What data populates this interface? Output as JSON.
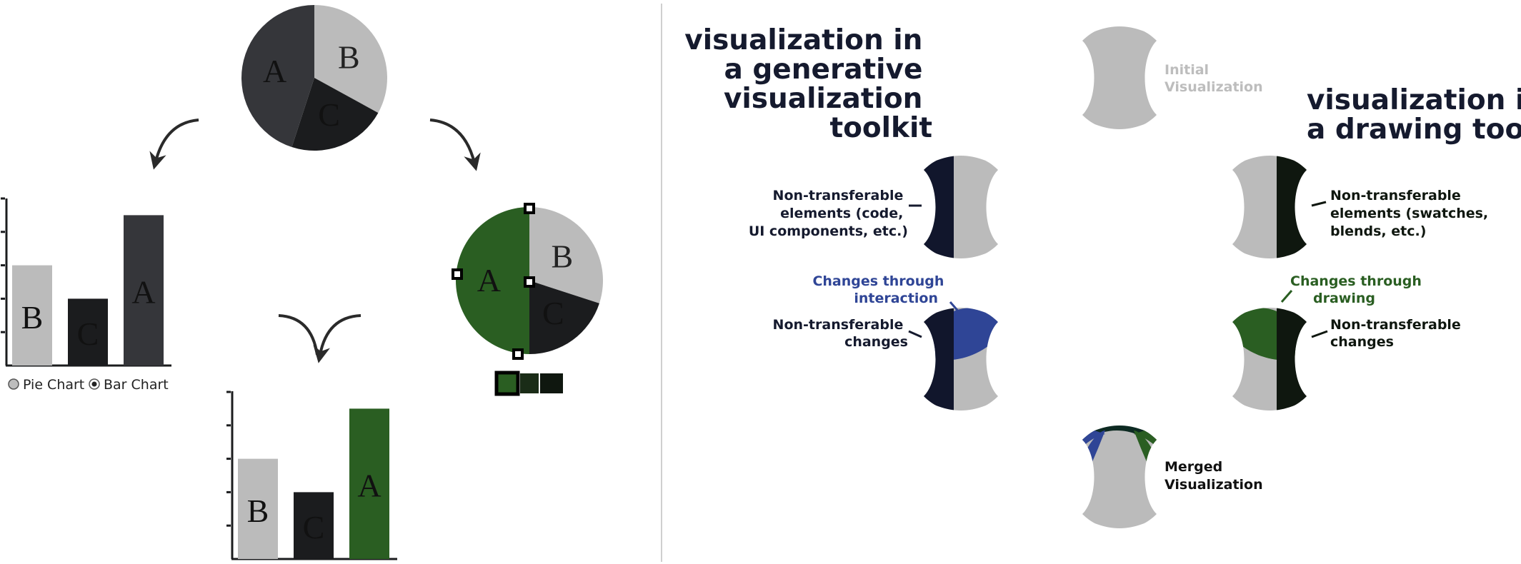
{
  "colors": {
    "dark": "#35363a",
    "light": "#bbbbbb",
    "black": "#1b1c1e",
    "green": "#2a5e22",
    "green_dark": "#0f170f",
    "navy": "#11162c",
    "blue": "#2f4596",
    "divider": "#cfcfcf"
  },
  "left_panel": {
    "pie_initial": {
      "slices": [
        {
          "label": "A",
          "value": 45
        },
        {
          "label": "B",
          "value": 33
        },
        {
          "label": "C",
          "value": 22
        }
      ]
    },
    "bar_interaction": {
      "bars": [
        {
          "label": "B",
          "value": 60
        },
        {
          "label": "C",
          "value": 40
        },
        {
          "label": "A",
          "value": 90
        }
      ],
      "radio": {
        "pie_label": "Pie Chart",
        "bar_label": "Bar Chart",
        "selected": "Bar Chart"
      }
    },
    "pie_drawing": {
      "slices": [
        {
          "label": "A",
          "value": 50
        },
        {
          "label": "B",
          "value": 30
        },
        {
          "label": "C",
          "value": 20
        }
      ]
    },
    "bar_merged": {
      "bars": [
        {
          "label": "B",
          "value": 60
        },
        {
          "label": "C",
          "value": 40
        },
        {
          "label": "A",
          "value": 90
        }
      ]
    }
  },
  "right_panel": {
    "title_left": [
      "visualization in",
      "a generative",
      "visualization",
      "toolkit"
    ],
    "title_right": [
      "visualization in",
      "a drawing tool"
    ],
    "initial_label": [
      "Initial",
      "Visualization"
    ],
    "toolkit_elements_label": [
      "Non-transferable",
      "elements (code,",
      "UI components, etc.)"
    ],
    "drawing_elements_label": [
      "Non-transferable",
      "elements (swatches,",
      "blends, etc.)"
    ],
    "interaction_changes_label": [
      "Changes through",
      "interaction"
    ],
    "toolkit_changes_label": [
      "Non-transferable",
      "changes"
    ],
    "drawing_changes_label": [
      "Changes through",
      "drawing"
    ],
    "drawing_nt_changes_label": [
      "Non-transferable",
      "changes"
    ],
    "merged_label": [
      "Merged",
      "Visualization"
    ]
  }
}
